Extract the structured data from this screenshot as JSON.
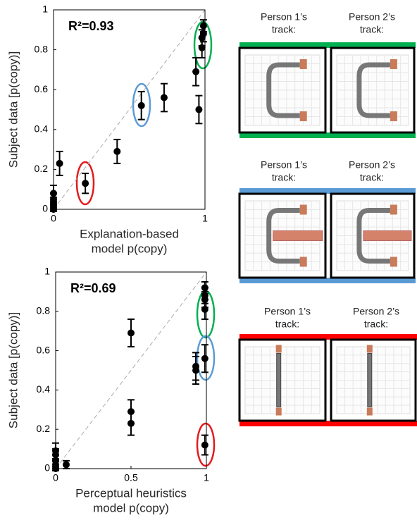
{
  "chart_data": [
    {
      "type": "scatter",
      "annotation": "R²=0.93",
      "xlabel": [
        "Explanation-based",
        "model p(copy)"
      ],
      "ylabel": "Subject data [p(copy)]",
      "x": [
        0.0,
        0.0,
        0.0,
        0.0,
        0.0,
        0.04,
        0.21,
        0.42,
        0.58,
        0.73,
        0.94,
        0.96,
        0.98,
        0.98,
        0.99,
        0.99
      ],
      "values": [
        0.08,
        0.05,
        0.03,
        0.01,
        0.0,
        0.23,
        0.13,
        0.29,
        0.52,
        0.56,
        0.69,
        0.5,
        0.81,
        0.86,
        0.88,
        0.92
      ],
      "errors": [
        0.04,
        0.03,
        0.03,
        0.02,
        0.01,
        0.06,
        0.05,
        0.06,
        0.07,
        0.07,
        0.07,
        0.07,
        0.05,
        0.04,
        0.04,
        0.03
      ],
      "color": "#000000",
      "xlim": [
        0,
        1
      ],
      "ylim": [
        0,
        1
      ],
      "xticks": [
        0,
        1
      ],
      "yticks": [
        0,
        0.2,
        0.4,
        0.6,
        0.8,
        1
      ]
    },
    {
      "type": "scatter",
      "annotation": "R²=0.69",
      "xlabel": [
        "Perceptual heuristics",
        "model p(copy)"
      ],
      "ylabel": "Subject data [p(copy)]",
      "x": [
        0.0,
        0.0,
        0.0,
        0.0,
        0.0,
        0.07,
        0.5,
        0.5,
        0.5,
        0.93,
        0.93,
        0.99,
        0.99,
        0.99,
        0.99,
        0.99,
        0.99
      ],
      "values": [
        0.09,
        0.07,
        0.04,
        0.02,
        0.0,
        0.02,
        0.69,
        0.29,
        0.23,
        0.52,
        0.5,
        0.56,
        0.12,
        0.81,
        0.86,
        0.88,
        0.92
      ],
      "errors": [
        0.04,
        0.03,
        0.03,
        0.02,
        0.01,
        0.02,
        0.07,
        0.06,
        0.06,
        0.07,
        0.07,
        0.07,
        0.05,
        0.05,
        0.04,
        0.04,
        0.03
      ],
      "color": "#000000",
      "xlim": [
        0,
        1
      ],
      "ylim": [
        0,
        1
      ],
      "xticks": [
        0,
        0.5,
        1
      ],
      "yticks": [
        0,
        0.2,
        0.4,
        0.6,
        0.8,
        1
      ]
    }
  ],
  "tracks": [
    {
      "color": "#00b050",
      "labels": [
        [
          "Person 1’s",
          "track:"
        ],
        [
          "Person 2’s",
          "track:"
        ]
      ]
    },
    {
      "color": "#5b9bd5",
      "labels": [
        [
          "Person 1’s",
          "track:"
        ],
        [
          "Person 2’s",
          "track:"
        ]
      ]
    },
    {
      "color": "#ff0000",
      "labels": [
        [
          "Person 1’s",
          "track:"
        ],
        [
          "Person 2’s",
          "track:"
        ]
      ]
    }
  ]
}
